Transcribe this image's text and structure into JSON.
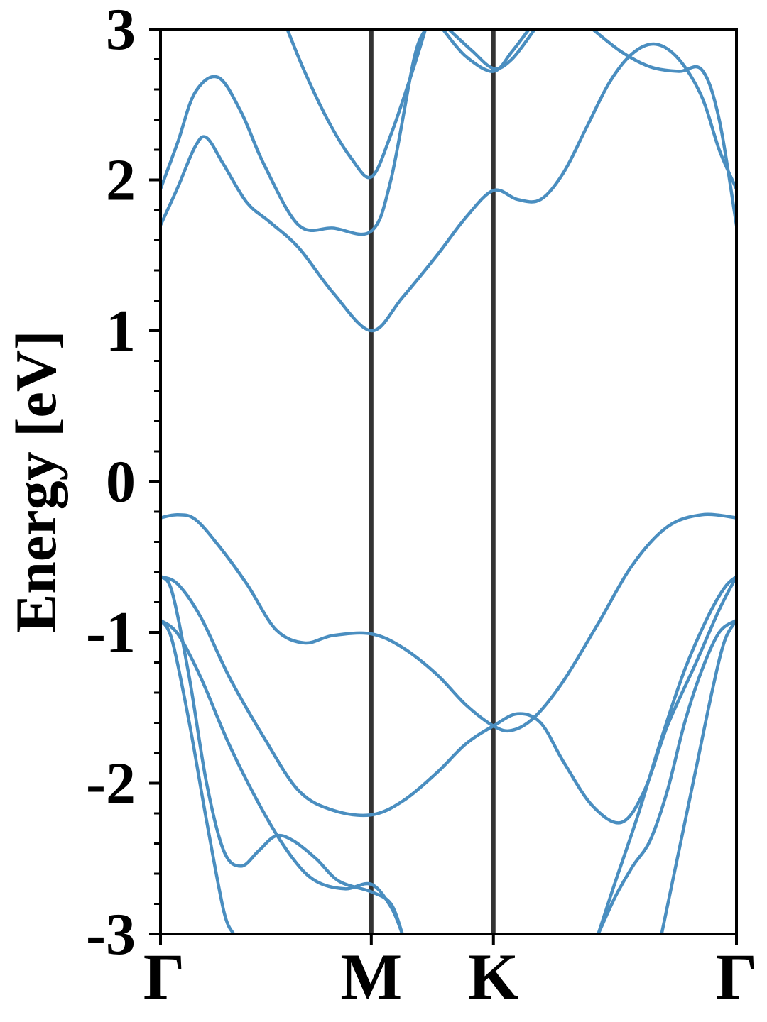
{
  "chart_data": {
    "type": "line",
    "title": "",
    "xlabel": "",
    "ylabel": "Energy [eV]",
    "ylim": [
      -3,
      3
    ],
    "xlim": [
      0,
      1
    ],
    "grid": false,
    "legend": "none",
    "y_ticks": [
      -3,
      -2,
      -1,
      0,
      1,
      2,
      3
    ],
    "y_tick_labels": [
      "-3",
      "-2",
      "-1",
      "0",
      "1",
      "2",
      "3"
    ],
    "y_minor_step": 0.2,
    "k_points": [
      {
        "label": "Γ",
        "x": 0.0
      },
      {
        "label": "M",
        "x": 0.366
      },
      {
        "label": "K",
        "x": 0.578
      },
      {
        "label": "Γ",
        "x": 1.0
      }
    ],
    "band_color": "#4a8ec0",
    "kpath_line_color": "#333333",
    "series": [
      {
        "values": [
          [
            0.0,
            -0.24
          ],
          [
            0.03,
            -0.22
          ],
          [
            0.06,
            -0.25
          ],
          [
            0.1,
            -0.42
          ],
          [
            0.15,
            -0.68
          ],
          [
            0.2,
            -0.98
          ],
          [
            0.25,
            -1.07
          ],
          [
            0.3,
            -1.02
          ],
          [
            0.366,
            -1.01
          ],
          [
            0.42,
            -1.1
          ],
          [
            0.48,
            -1.28
          ],
          [
            0.53,
            -1.48
          ],
          [
            0.578,
            -1.62
          ],
          [
            0.61,
            -1.65
          ],
          [
            0.65,
            -1.56
          ],
          [
            0.7,
            -1.32
          ],
          [
            0.76,
            -0.94
          ],
          [
            0.82,
            -0.55
          ],
          [
            0.88,
            -0.3
          ],
          [
            0.94,
            -0.22
          ],
          [
            1.0,
            -0.24
          ]
        ]
      },
      {
        "values": [
          [
            0.0,
            -0.63
          ],
          [
            0.03,
            -0.68
          ],
          [
            0.07,
            -0.9
          ],
          [
            0.12,
            -1.3
          ],
          [
            0.18,
            -1.7
          ],
          [
            0.24,
            -2.05
          ],
          [
            0.3,
            -2.18
          ],
          [
            0.366,
            -2.21
          ],
          [
            0.42,
            -2.12
          ],
          [
            0.48,
            -1.93
          ],
          [
            0.53,
            -1.74
          ],
          [
            0.578,
            -1.62
          ],
          [
            0.62,
            -1.54
          ],
          [
            0.66,
            -1.6
          ],
          [
            0.7,
            -1.86
          ],
          [
            0.75,
            -2.15
          ],
          [
            0.8,
            -2.26
          ],
          [
            0.84,
            -2.05
          ],
          [
            0.88,
            -1.62
          ],
          [
            0.93,
            -1.2
          ],
          [
            0.97,
            -0.85
          ],
          [
            1.0,
            -0.63
          ]
        ]
      },
      {
        "values": [
          [
            0.0,
            -0.92
          ],
          [
            0.03,
            -1.01
          ],
          [
            0.07,
            -1.3
          ],
          [
            0.12,
            -1.75
          ],
          [
            0.18,
            -2.2
          ],
          [
            0.23,
            -2.5
          ],
          [
            0.27,
            -2.65
          ],
          [
            0.32,
            -2.7
          ],
          [
            0.366,
            -2.67
          ],
          [
            0.4,
            -2.82
          ],
          [
            0.42,
            -3.0
          ]
        ]
      },
      {
        "values": [
          [
            0.0,
            -0.63
          ],
          [
            0.02,
            -0.73
          ],
          [
            0.05,
            -1.3
          ],
          [
            0.08,
            -2.0
          ],
          [
            0.11,
            -2.45
          ],
          [
            0.14,
            -2.55
          ],
          [
            0.17,
            -2.45
          ],
          [
            0.2,
            -2.35
          ],
          [
            0.23,
            -2.38
          ],
          [
            0.27,
            -2.5
          ],
          [
            0.31,
            -2.65
          ],
          [
            0.366,
            -2.72
          ],
          [
            0.4,
            -2.8
          ],
          [
            0.42,
            -3.0
          ]
        ]
      },
      {
        "values": [
          [
            0.0,
            -0.92
          ],
          [
            0.02,
            -1.05
          ],
          [
            0.05,
            -1.6
          ],
          [
            0.08,
            -2.25
          ],
          [
            0.11,
            -2.85
          ],
          [
            0.127,
            -3.0
          ]
        ]
      },
      {
        "values": [
          [
            0.76,
            -3.0
          ],
          [
            0.79,
            -2.65
          ],
          [
            0.83,
            -2.2
          ],
          [
            0.87,
            -1.7
          ],
          [
            0.91,
            -1.25
          ],
          [
            0.95,
            -0.9
          ],
          [
            0.98,
            -0.7
          ],
          [
            1.0,
            -0.63
          ]
        ]
      },
      {
        "values": [
          [
            0.76,
            -3.0
          ],
          [
            0.79,
            -2.75
          ],
          [
            0.82,
            -2.55
          ],
          [
            0.85,
            -2.38
          ],
          [
            0.88,
            -2.05
          ],
          [
            0.91,
            -1.6
          ],
          [
            0.94,
            -1.25
          ],
          [
            0.97,
            -1.0
          ],
          [
            1.0,
            -0.92
          ]
        ]
      },
      {
        "values": [
          [
            0.87,
            -3.0
          ],
          [
            0.9,
            -2.45
          ],
          [
            0.93,
            -1.9
          ],
          [
            0.96,
            -1.35
          ],
          [
            0.98,
            -1.05
          ],
          [
            1.0,
            -0.92
          ]
        ]
      },
      {
        "values": [
          [
            0.0,
            1.7
          ],
          [
            0.03,
            1.95
          ],
          [
            0.06,
            2.22
          ],
          [
            0.08,
            2.28
          ],
          [
            0.11,
            2.1
          ],
          [
            0.15,
            1.85
          ],
          [
            0.19,
            1.72
          ],
          [
            0.24,
            1.55
          ],
          [
            0.3,
            1.25
          ],
          [
            0.366,
            1.0
          ],
          [
            0.42,
            1.22
          ],
          [
            0.48,
            1.5
          ],
          [
            0.53,
            1.75
          ],
          [
            0.578,
            1.93
          ],
          [
            0.62,
            1.87
          ],
          [
            0.66,
            1.87
          ],
          [
            0.7,
            2.05
          ],
          [
            0.74,
            2.35
          ],
          [
            0.78,
            2.65
          ],
          [
            0.82,
            2.84
          ],
          [
            0.86,
            2.9
          ],
          [
            0.9,
            2.8
          ],
          [
            0.94,
            2.55
          ],
          [
            0.97,
            2.2
          ],
          [
            1.0,
            1.94
          ]
        ]
      },
      {
        "values": [
          [
            0.0,
            1.94
          ],
          [
            0.03,
            2.25
          ],
          [
            0.06,
            2.58
          ],
          [
            0.1,
            2.68
          ],
          [
            0.14,
            2.45
          ],
          [
            0.18,
            2.1
          ],
          [
            0.24,
            1.7
          ],
          [
            0.3,
            1.68
          ],
          [
            0.366,
            1.66
          ],
          [
            0.4,
            2.0
          ],
          [
            0.44,
            2.8
          ],
          [
            0.46,
            3.0
          ]
        ]
      },
      {
        "values": [
          [
            0.22,
            3.0
          ],
          [
            0.25,
            2.72
          ],
          [
            0.29,
            2.4
          ],
          [
            0.33,
            2.15
          ],
          [
            0.366,
            2.02
          ],
          [
            0.4,
            2.3
          ],
          [
            0.44,
            2.75
          ],
          [
            0.46,
            3.0
          ]
        ]
      },
      {
        "values": [
          [
            0.5,
            3.0
          ],
          [
            0.54,
            2.86
          ],
          [
            0.578,
            2.74
          ],
          [
            0.61,
            2.8
          ],
          [
            0.65,
            3.0
          ]
        ]
      },
      {
        "values": [
          [
            0.49,
            3.0
          ],
          [
            0.53,
            2.82
          ],
          [
            0.578,
            2.72
          ],
          [
            0.61,
            2.85
          ],
          [
            0.64,
            3.0
          ]
        ]
      },
      {
        "values": [
          [
            0.75,
            3.0
          ],
          [
            0.8,
            2.85
          ],
          [
            0.85,
            2.75
          ],
          [
            0.9,
            2.72
          ],
          [
            0.94,
            2.73
          ],
          [
            0.97,
            2.4
          ],
          [
            1.0,
            1.7
          ]
        ]
      }
    ]
  }
}
